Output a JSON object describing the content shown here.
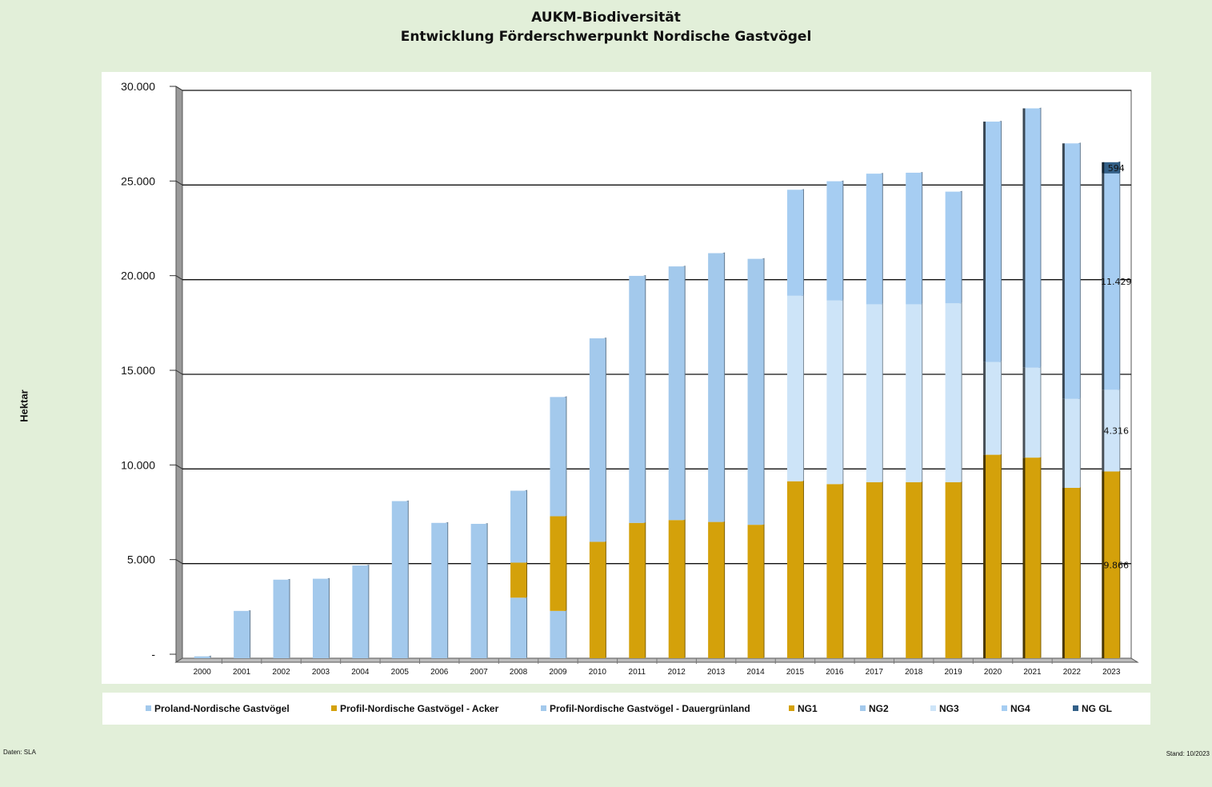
{
  "chart_data": {
    "type": "bar",
    "stacked": true,
    "title": "AUKM-Biodiversität",
    "subtitle": "Entwicklung Förderschwerpunkt Nordische Gastvögel",
    "ylabel": "Hektar",
    "xlabel": "",
    "ylim": [
      0,
      30000
    ],
    "yticks": [
      {
        "value": 0,
        "label": "-"
      },
      {
        "value": 5000,
        "label": "5.000"
      },
      {
        "value": 10000,
        "label": "10.000"
      },
      {
        "value": 15000,
        "label": "15.000"
      },
      {
        "value": 20000,
        "label": "20.000"
      },
      {
        "value": 25000,
        "label": "25.000"
      },
      {
        "value": 30000,
        "label": "30.000"
      }
    ],
    "categories": [
      "2000",
      "2001",
      "2002",
      "2003",
      "2004",
      "2005",
      "2006",
      "2007",
      "2008",
      "2009",
      "2010",
      "2011",
      "2012",
      "2013",
      "2014",
      "2015",
      "2016",
      "2017",
      "2018",
      "2019",
      "2020",
      "2021",
      "2022",
      "2023"
    ],
    "series": [
      {
        "name": "Proland-Nordische Gastvögel",
        "color": "#a3c9ec",
        "values": [
          100,
          2500,
          4150,
          4200,
          4900,
          8300,
          7150,
          7100,
          3200,
          2500,
          0,
          0,
          0,
          0,
          0,
          0,
          0,
          0,
          0,
          0,
          0,
          0,
          0,
          0
        ]
      },
      {
        "name": "Profil-Nordische Gastvögel - Acker",
        "color": "#d4a10a",
        "values": [
          0,
          0,
          0,
          0,
          0,
          0,
          0,
          0,
          1850,
          5000,
          6150,
          7150,
          7300,
          7200,
          7050,
          0,
          0,
          0,
          0,
          0,
          0,
          0,
          0,
          0
        ]
      },
      {
        "name": "Profil-Nordische Gastvögel - Dauergrünland",
        "color": "#a3c9ec",
        "values": [
          0,
          0,
          0,
          0,
          0,
          0,
          0,
          0,
          3800,
          6300,
          10750,
          13050,
          13400,
          14200,
          14050,
          0,
          0,
          0,
          0,
          0,
          0,
          0,
          0,
          0
        ]
      },
      {
        "name": "NG1",
        "color": "#d4a10a",
        "values": [
          0,
          0,
          0,
          0,
          0,
          0,
          0,
          0,
          0,
          0,
          0,
          0,
          0,
          0,
          0,
          9350,
          9200,
          9300,
          9300,
          9300,
          10750,
          10600,
          9000,
          9866
        ]
      },
      {
        "name": "NG2",
        "color": "#a3c9ec",
        "values": [
          0,
          0,
          0,
          0,
          0,
          0,
          0,
          0,
          0,
          0,
          0,
          0,
          0,
          0,
          0,
          0,
          0,
          0,
          0,
          0,
          0,
          0,
          0,
          0
        ]
      },
      {
        "name": "NG3",
        "color": "#cde4f8",
        "values": [
          0,
          0,
          0,
          0,
          0,
          0,
          0,
          0,
          0,
          0,
          0,
          0,
          0,
          0,
          0,
          9800,
          9700,
          9400,
          9400,
          9450,
          4900,
          4750,
          4700,
          4316
        ]
      },
      {
        "name": "NG4",
        "color": "#a6cdf2",
        "values": [
          0,
          0,
          0,
          0,
          0,
          0,
          0,
          0,
          0,
          0,
          0,
          0,
          0,
          0,
          0,
          5600,
          6300,
          6900,
          6950,
          5900,
          12700,
          13700,
          13500,
          11429
        ]
      },
      {
        "name": "NG GL",
        "color": "#336088",
        "values": [
          0,
          0,
          0,
          0,
          0,
          0,
          0,
          0,
          0,
          0,
          0,
          0,
          0,
          0,
          0,
          0,
          0,
          0,
          0,
          0,
          0,
          0,
          0,
          594
        ]
      }
    ],
    "data_labels": [
      {
        "category": "2023",
        "series": "NG1",
        "label": "9.866"
      },
      {
        "category": "2023",
        "series": "NG3",
        "label": "4.316"
      },
      {
        "category": "2023",
        "series": "NG4",
        "label": "11.429"
      },
      {
        "category": "2023",
        "series": "NG GL",
        "label": "594"
      }
    ],
    "legend": "bottom",
    "grid": true
  },
  "footer": {
    "source": "Daten: SLA",
    "stand": "Stand: 10/2023"
  }
}
